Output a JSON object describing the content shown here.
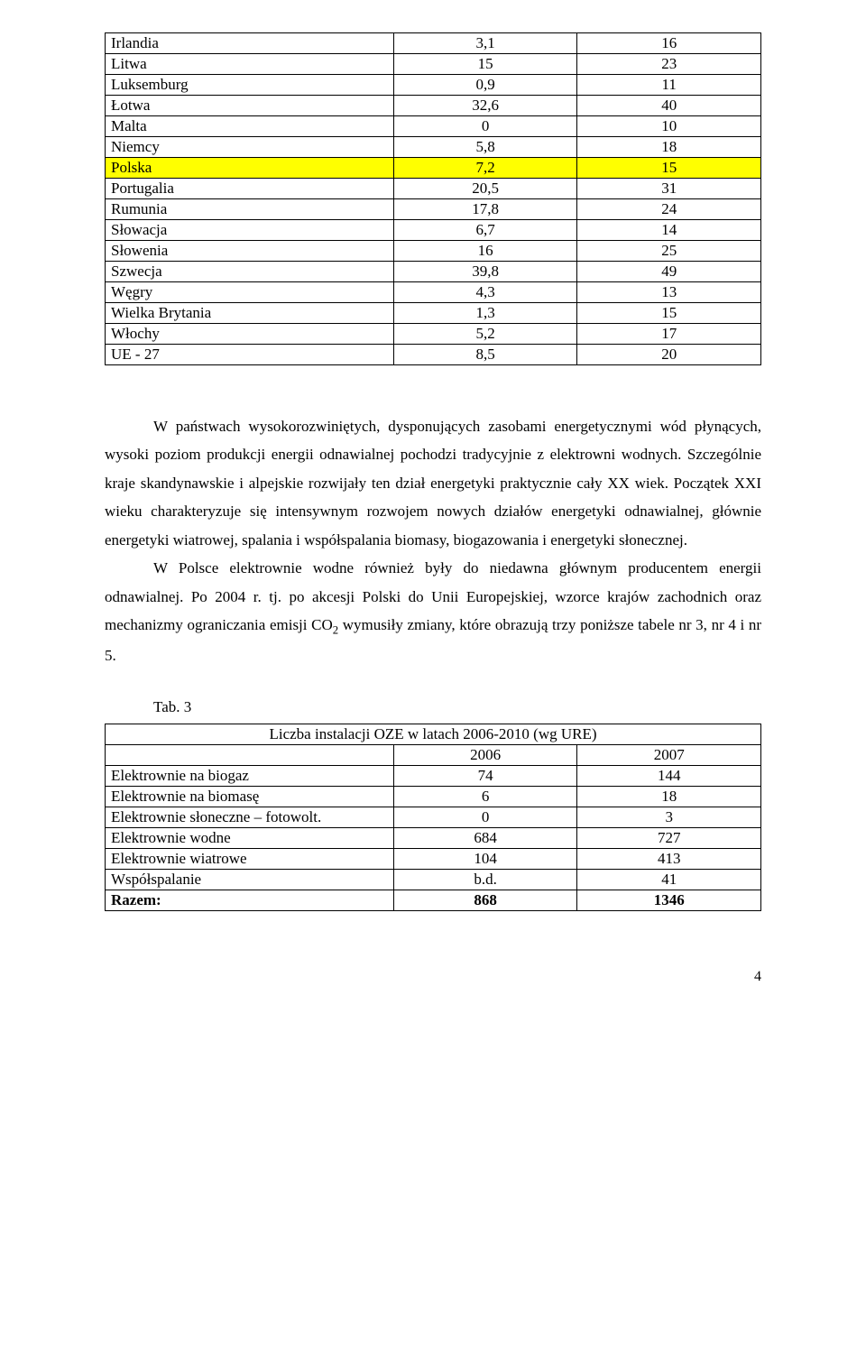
{
  "table1": {
    "rows": [
      {
        "c": [
          "Irlandia",
          "3,1",
          "16"
        ],
        "hl": false
      },
      {
        "c": [
          "Litwa",
          "15",
          "23"
        ],
        "hl": false
      },
      {
        "c": [
          "Luksemburg",
          "0,9",
          "11"
        ],
        "hl": false
      },
      {
        "c": [
          "Łotwa",
          "32,6",
          "40"
        ],
        "hl": false
      },
      {
        "c": [
          "Malta",
          "0",
          "10"
        ],
        "hl": false
      },
      {
        "c": [
          "Niemcy",
          "5,8",
          "18"
        ],
        "hl": false
      },
      {
        "c": [
          "Polska",
          "7,2",
          "15"
        ],
        "hl": true
      },
      {
        "c": [
          "Portugalia",
          "20,5",
          "31"
        ],
        "hl": false
      },
      {
        "c": [
          "Rumunia",
          "17,8",
          "24"
        ],
        "hl": false
      },
      {
        "c": [
          "Słowacja",
          "6,7",
          "14"
        ],
        "hl": false
      },
      {
        "c": [
          "Słowenia",
          "16",
          "25"
        ],
        "hl": false
      },
      {
        "c": [
          "Szwecja",
          "39,8",
          "49"
        ],
        "hl": false
      },
      {
        "c": [
          "Węgry",
          "4,3",
          "13"
        ],
        "hl": false
      },
      {
        "c": [
          "Wielka Brytania",
          "1,3",
          "15"
        ],
        "hl": false
      },
      {
        "c": [
          "Włochy",
          "5,2",
          "17"
        ],
        "hl": false
      },
      {
        "c": [
          "UE - 27",
          "8,5",
          "20"
        ],
        "hl": false
      }
    ]
  },
  "para1_a": "W państwach wysokorozwiniętych, dysponujących zasobami energetycznymi wód płynących, wysoki poziom produkcji energii odnawialnej pochodzi tradycyjnie z elektrowni wodnych. Szczególnie kraje skandynawskie i alpejskie rozwijały ten dział energetyki praktycznie cały XX wiek. Początek XXI wieku charakteryzuje się intensywnym rozwojem nowych działów energetyki odnawialnej, głównie energetyki wiatrowej, spalania i współspalania biomasy, biogazowania i energetyki słonecznej.",
  "para2_a": "W Polsce elektrownie wodne również były do niedawna głównym producentem energii odnawialnej. Po 2004 r. tj. po akcesji Polski do Unii Europejskiej, wzorce krajów zachodnich oraz mechanizmy ograniczania emisji CO",
  "para2_b": " wymusiły zmiany, które obrazują trzy poniższe tabele nr 3, nr 4 i nr 5.",
  "co2_sub": "2",
  "tab3_label": "Tab. 3",
  "table2": {
    "title": "Liczba instalacji OZE w latach 2006-2010 (wg URE)",
    "hdr": [
      "",
      "2006",
      "2007"
    ],
    "rows": [
      {
        "c": [
          "Elektrownie na biogaz",
          "74",
          "144"
        ],
        "cls": "t2-a-ind"
      },
      {
        "c": [
          "Elektrownie na biomasę",
          "6",
          "18"
        ],
        "cls": "t2-a-ind"
      },
      {
        "c": [
          "Elektrownie słoneczne – fotowolt.",
          "0",
          "3"
        ],
        "cls": "t2-a"
      },
      {
        "c": [
          "Elektrownie wodne",
          "684",
          "727"
        ],
        "cls": "t2-a-ind"
      },
      {
        "c": [
          "Elektrownie wiatrowe",
          "104",
          "413"
        ],
        "cls": "t2-a-ind"
      },
      {
        "c": [
          "Współspalanie",
          "b.d.",
          "41"
        ],
        "cls": "t2-a-ind2"
      }
    ],
    "razem": [
      "Razem:",
      "868",
      "1346"
    ]
  },
  "page_number": "4"
}
